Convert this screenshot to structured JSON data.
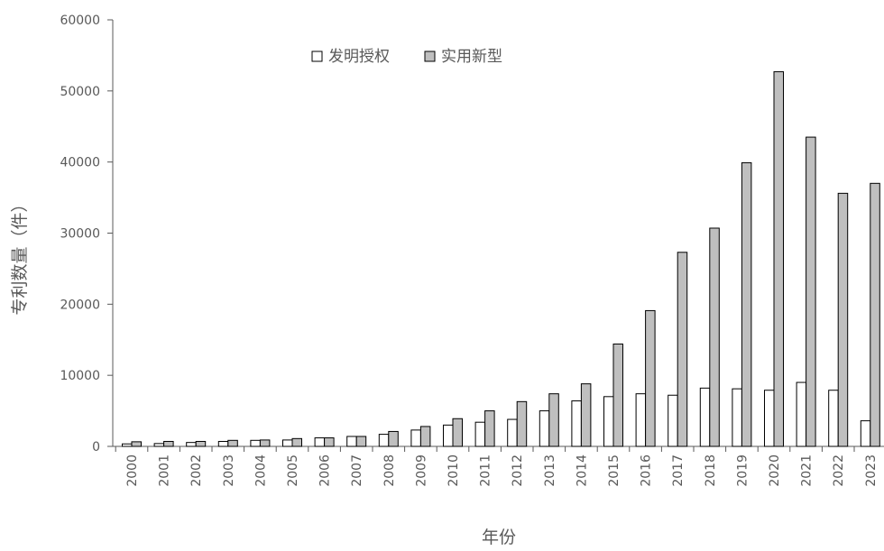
{
  "chart_data": {
    "type": "bar",
    "xlabel": "年份",
    "ylabel": "专利数量（件）",
    "ylim": [
      0,
      60000
    ],
    "yticks": [
      0,
      10000,
      20000,
      30000,
      40000,
      50000,
      60000
    ],
    "grid": false,
    "legend_position": "top-center",
    "categories": [
      "2000",
      "2001",
      "2002",
      "2003",
      "2004",
      "2005",
      "2006",
      "2007",
      "2008",
      "2009",
      "2010",
      "2011",
      "2012",
      "2013",
      "2014",
      "2015",
      "2016",
      "2017",
      "2018",
      "2019",
      "2020",
      "2021",
      "2022",
      "2023"
    ],
    "series": [
      {
        "name": "发明授权",
        "color": "#ffffff",
        "values": [
          350,
          400,
          550,
          700,
          850,
          900,
          1200,
          1400,
          1700,
          2300,
          3000,
          3400,
          3800,
          5000,
          6400,
          7000,
          7400,
          7200,
          8200,
          8100,
          7900,
          9000,
          7900,
          3600
        ]
      },
      {
        "name": "实用新型",
        "color": "#bfbfbf",
        "values": [
          650,
          700,
          700,
          850,
          900,
          1100,
          1200,
          1400,
          2100,
          2800,
          3900,
          5000,
          6300,
          7400,
          8800,
          14400,
          19100,
          27300,
          30700,
          39900,
          52700,
          43500,
          35600,
          37000
        ]
      }
    ]
  },
  "colors": {
    "axis": "#595959",
    "bar_stroke": "#000000",
    "text": "#595959"
  }
}
